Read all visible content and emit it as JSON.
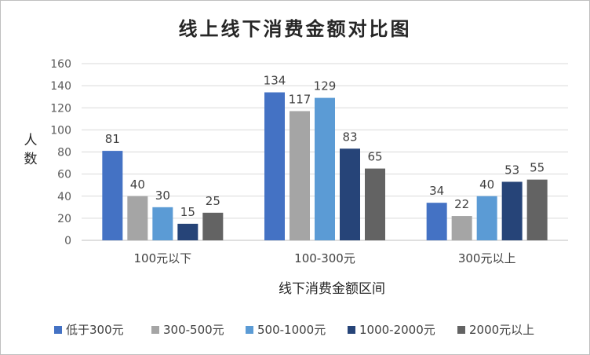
{
  "chart_data": {
    "type": "bar",
    "title": "线上线下消费金额对比图",
    "xlabel": "线下消费金额区间",
    "ylabel": "人数",
    "ylim": [
      0,
      160
    ],
    "yticks": [
      0,
      20,
      40,
      60,
      80,
      100,
      120,
      140,
      160
    ],
    "categories": [
      "100元以下",
      "100-300元",
      "300元以上"
    ],
    "series": [
      {
        "name": "低于300元",
        "color": "#4472c4",
        "values": [
          81,
          134,
          34
        ]
      },
      {
        "name": "300-500元",
        "color": "#a5a5a5",
        "values": [
          40,
          117,
          22
        ]
      },
      {
        "name": "500-1000元",
        "color": "#5b9bd5",
        "values": [
          30,
          129,
          40
        ]
      },
      {
        "name": "1000-2000元",
        "color": "#264478",
        "values": [
          15,
          83,
          53
        ]
      },
      {
        "name": "2000元以上",
        "color": "#636363",
        "values": [
          25,
          65,
          55
        ]
      }
    ],
    "grid": true,
    "legend_position": "bottom"
  }
}
